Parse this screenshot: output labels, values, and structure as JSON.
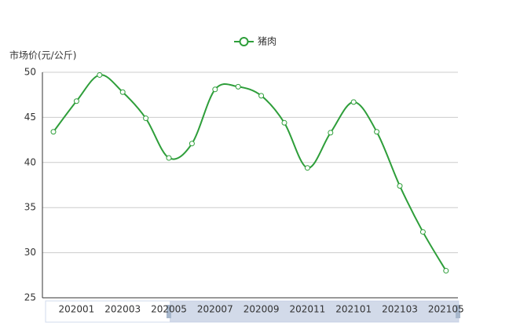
{
  "chart_data": {
    "type": "line",
    "y_axis_label": "市场价(元/公斤)",
    "categories": [
      null,
      "202001",
      null,
      "202003",
      null,
      "202005",
      null,
      "202007",
      null,
      "202009",
      null,
      "202011",
      null,
      "202101",
      null,
      "202103",
      null,
      "202105"
    ],
    "series": [
      {
        "name": "猪肉",
        "color": "#2e9e3a",
        "values": [
          43.4,
          46.8,
          49.7,
          47.8,
          44.9,
          40.5,
          42.1,
          48.1,
          48.4,
          47.4,
          44.4,
          39.4,
          43.3,
          46.7,
          43.4,
          37.4,
          32.3,
          28.0
        ]
      }
    ],
    "ylim": [
      25,
      50
    ],
    "yticks": [
      25,
      30,
      35,
      40,
      45,
      50
    ],
    "grid": true,
    "smooth": true,
    "legend": "top"
  }
}
